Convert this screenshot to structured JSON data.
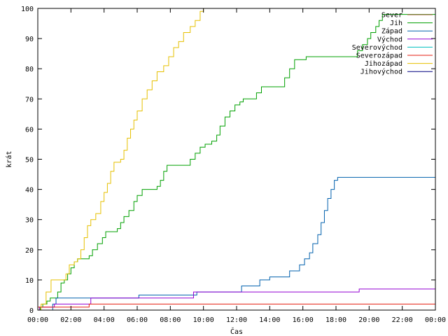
{
  "chart_data": {
    "type": "line",
    "title": "",
    "xlabel": "Čas",
    "ylabel": "krát",
    "xlim": [
      0,
      24
    ],
    "ylim": [
      0,
      100
    ],
    "x_unit": "hours",
    "x_tick_labels": [
      "00:00",
      "02:00",
      "04:00",
      "06:00",
      "08:00",
      "10:00",
      "12:00",
      "14:00",
      "16:00",
      "18:00",
      "20:00",
      "22:00",
      "00:00"
    ],
    "y_tick_labels": [
      "0",
      "10",
      "20",
      "30",
      "40",
      "50",
      "60",
      "70",
      "80",
      "90",
      "100"
    ],
    "grid": false,
    "legend_position": "top-right",
    "series": [
      {
        "name": "Sever",
        "color": "#a0522d",
        "points": [
          [
            0,
            0
          ],
          [
            24,
            0
          ]
        ]
      },
      {
        "name": "Jih",
        "color": "#00a000",
        "points": [
          [
            0,
            0
          ],
          [
            0.15,
            1
          ],
          [
            0.3,
            2
          ],
          [
            0.55,
            3
          ],
          [
            0.75,
            4
          ],
          [
            1.2,
            6
          ],
          [
            1.4,
            9
          ],
          [
            1.6,
            10
          ],
          [
            1.8,
            12
          ],
          [
            2.0,
            14
          ],
          [
            2.2,
            16
          ],
          [
            2.4,
            17
          ],
          [
            3.0,
            17
          ],
          [
            3.1,
            18
          ],
          [
            3.3,
            20
          ],
          [
            3.6,
            22
          ],
          [
            3.9,
            24
          ],
          [
            4.1,
            26
          ],
          [
            4.6,
            26
          ],
          [
            4.8,
            27
          ],
          [
            5.0,
            29
          ],
          [
            5.2,
            31
          ],
          [
            5.5,
            33
          ],
          [
            5.8,
            36
          ],
          [
            6.0,
            38
          ],
          [
            6.3,
            40
          ],
          [
            7.0,
            40
          ],
          [
            7.2,
            41
          ],
          [
            7.4,
            43
          ],
          [
            7.6,
            46
          ],
          [
            7.8,
            48
          ],
          [
            9.0,
            48
          ],
          [
            9.2,
            50
          ],
          [
            9.5,
            52
          ],
          [
            9.8,
            54
          ],
          [
            10.1,
            55
          ],
          [
            10.5,
            56
          ],
          [
            10.8,
            58
          ],
          [
            11.0,
            61
          ],
          [
            11.3,
            64
          ],
          [
            11.6,
            66
          ],
          [
            11.9,
            68
          ],
          [
            12.2,
            69
          ],
          [
            12.4,
            70
          ],
          [
            13.0,
            70
          ],
          [
            13.2,
            72
          ],
          [
            13.5,
            74
          ],
          [
            14.7,
            74
          ],
          [
            14.9,
            77
          ],
          [
            15.2,
            80
          ],
          [
            15.5,
            83
          ],
          [
            16.0,
            83
          ],
          [
            16.2,
            84
          ],
          [
            19.0,
            84
          ],
          [
            19.3,
            86
          ],
          [
            19.6,
            88
          ],
          [
            19.9,
            90
          ],
          [
            20.1,
            92
          ],
          [
            20.4,
            94
          ],
          [
            20.6,
            96
          ],
          [
            20.8,
            98
          ],
          [
            24,
            98
          ]
        ]
      },
      {
        "name": "Západ",
        "color": "#0060ad",
        "points": [
          [
            0,
            0
          ],
          [
            0.9,
            2
          ],
          [
            1.1,
            4
          ],
          [
            6.0,
            4
          ],
          [
            6.1,
            5
          ],
          [
            9.5,
            5
          ],
          [
            9.6,
            6
          ],
          [
            12.2,
            6
          ],
          [
            12.3,
            8
          ],
          [
            13.3,
            8
          ],
          [
            13.4,
            10
          ],
          [
            14.0,
            11
          ],
          [
            15.0,
            11
          ],
          [
            15.2,
            13
          ],
          [
            15.6,
            13
          ],
          [
            15.8,
            15
          ],
          [
            16.1,
            17
          ],
          [
            16.4,
            19
          ],
          [
            16.6,
            22
          ],
          [
            16.9,
            25
          ],
          [
            17.1,
            29
          ],
          [
            17.3,
            33
          ],
          [
            17.5,
            37
          ],
          [
            17.7,
            40
          ],
          [
            17.9,
            43
          ],
          [
            18.1,
            44
          ],
          [
            24,
            44
          ]
        ]
      },
      {
        "name": "Východ",
        "color": "#9400d3",
        "points": [
          [
            0,
            0
          ],
          [
            0.1,
            1
          ],
          [
            1.0,
            2
          ],
          [
            3.0,
            2
          ],
          [
            3.2,
            4
          ],
          [
            9.3,
            4
          ],
          [
            9.4,
            6
          ],
          [
            19.3,
            6
          ],
          [
            19.4,
            7
          ],
          [
            24,
            7
          ]
        ]
      },
      {
        "name": "Severovýchod",
        "color": "#00bfbf",
        "points": [
          [
            0,
            0
          ],
          [
            24,
            0
          ]
        ]
      },
      {
        "name": "Severozápad",
        "color": "#e51e10",
        "points": [
          [
            0,
            1
          ],
          [
            3.0,
            1
          ],
          [
            3.1,
            2
          ],
          [
            24,
            2
          ]
        ]
      },
      {
        "name": "Jihozápad",
        "color": "#e6c000",
        "points": [
          [
            0,
            0
          ],
          [
            0.2,
            2
          ],
          [
            0.5,
            6
          ],
          [
            0.8,
            10
          ],
          [
            1.6,
            10
          ],
          [
            1.7,
            12
          ],
          [
            1.9,
            15
          ],
          [
            2.2,
            16
          ],
          [
            2.4,
            17
          ],
          [
            2.6,
            20
          ],
          [
            2.8,
            24
          ],
          [
            3.0,
            28
          ],
          [
            3.2,
            30
          ],
          [
            3.5,
            32
          ],
          [
            3.8,
            36
          ],
          [
            4.0,
            39
          ],
          [
            4.2,
            42
          ],
          [
            4.4,
            46
          ],
          [
            4.6,
            49
          ],
          [
            5.0,
            50
          ],
          [
            5.2,
            53
          ],
          [
            5.4,
            57
          ],
          [
            5.6,
            60
          ],
          [
            5.8,
            63
          ],
          [
            6.0,
            66
          ],
          [
            6.3,
            70
          ],
          [
            6.6,
            73
          ],
          [
            6.9,
            76
          ],
          [
            7.2,
            79
          ],
          [
            7.6,
            81
          ],
          [
            7.9,
            84
          ],
          [
            8.2,
            87
          ],
          [
            8.5,
            89
          ],
          [
            8.8,
            92
          ],
          [
            9.2,
            94
          ],
          [
            9.5,
            96
          ],
          [
            9.8,
            99
          ],
          [
            10.0,
            100
          ]
        ]
      },
      {
        "name": "Jihovýchod",
        "color": "#000080",
        "points": [
          [
            0,
            0
          ],
          [
            24,
            0
          ]
        ]
      }
    ]
  }
}
